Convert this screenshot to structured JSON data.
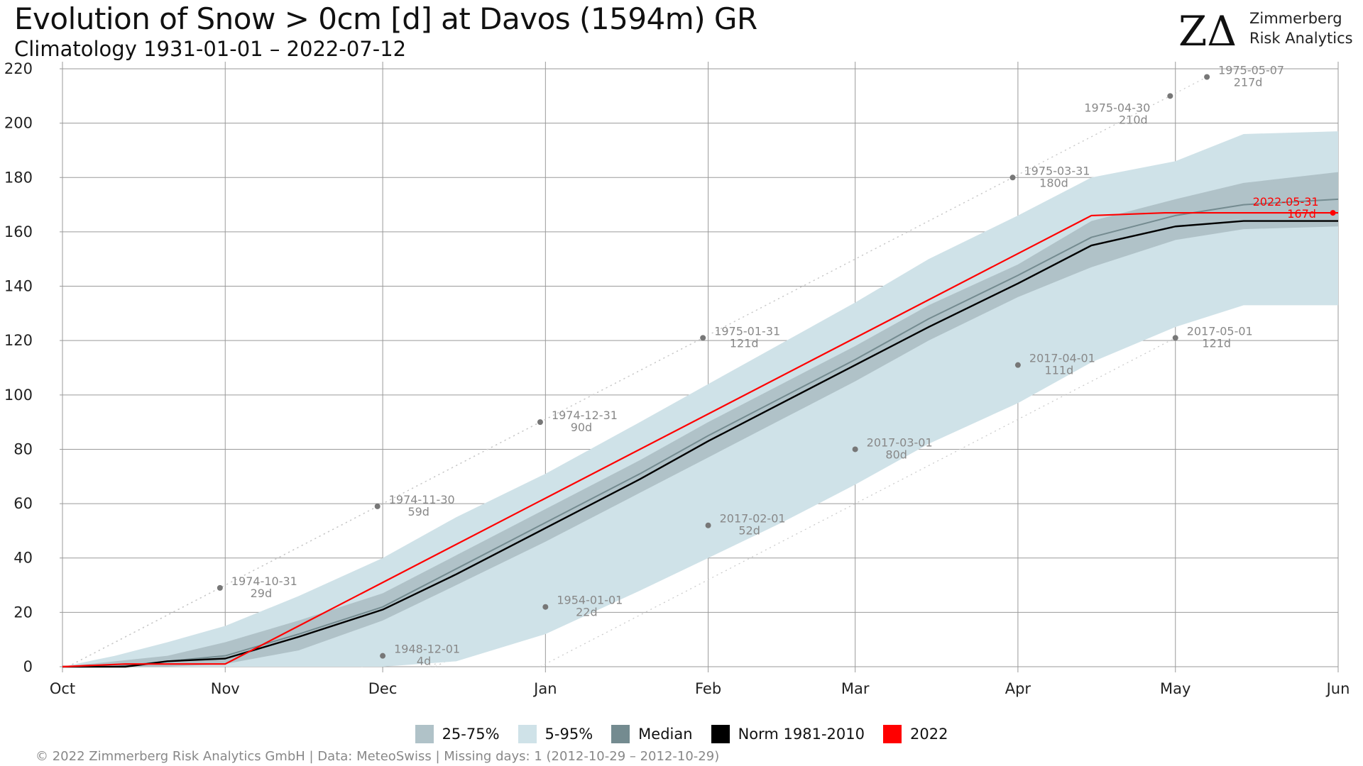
{
  "header": {
    "title": "Evolution of Snow > 0cm [d] at Davos (1594m) GR",
    "subtitle": "Climatology 1931-01-01 – 2022-07-12"
  },
  "logo": {
    "mark": "ZΔ",
    "line1": "Zimmerberg",
    "line2": "Risk Analytics"
  },
  "footer": {
    "text": "©  2022 Zimmerberg Risk Analytics GmbH | Data: MeteoSwiss | Missing days: 1 (2012-10-29 – 2012-10-29)"
  },
  "colors": {
    "band_25_75": "#b0c2c8",
    "band_5_95": "#cfe2e8",
    "median": "#748b90",
    "norm": "#000000",
    "current": "#ff0000",
    "annotation": "#888888"
  },
  "legend": [
    {
      "label": "25-75%",
      "color": "#b0c2c8"
    },
    {
      "label": "5-95%",
      "color": "#cfe2e8"
    },
    {
      "label": "Median",
      "color": "#748b90"
    },
    {
      "label": "Norm 1981-2010",
      "color": "#000000"
    },
    {
      "label": "2022",
      "color": "#ff0000"
    }
  ],
  "chart_data": {
    "type": "line",
    "title": "Evolution of Snow > 0cm [d] at Davos (1594m) GR",
    "subtitle": "Climatology 1931-01-01 – 2022-07-12",
    "xlabel": "",
    "ylabel": "",
    "x_unit": "days since Oct 1",
    "xlim": [
      0,
      243
    ],
    "ylim": [
      0,
      220
    ],
    "yticks": [
      0,
      20,
      40,
      60,
      80,
      100,
      120,
      140,
      160,
      180,
      200,
      220
    ],
    "xticks": [
      {
        "label": "Oct",
        "x": 0
      },
      {
        "label": "Nov",
        "x": 31
      },
      {
        "label": "Dec",
        "x": 61
      },
      {
        "label": "Jan",
        "x": 92
      },
      {
        "label": "Feb",
        "x": 123
      },
      {
        "label": "Mar",
        "x": 151
      },
      {
        "label": "Apr",
        "x": 182
      },
      {
        "label": "May",
        "x": 212
      },
      {
        "label": "Jun",
        "x": 243
      }
    ],
    "grid": true,
    "legend_position": "bottom",
    "bands": {
      "x": [
        0,
        10,
        20,
        31,
        45,
        61,
        75,
        92,
        110,
        123,
        137,
        151,
        165,
        182,
        196,
        212,
        225,
        243
      ],
      "p5": [
        0,
        0,
        0,
        0,
        0,
        0,
        2,
        12,
        28,
        40,
        53,
        67,
        82,
        97,
        112,
        125,
        133,
        133
      ],
      "p25": [
        0,
        0,
        0,
        1,
        6,
        17,
        30,
        46,
        64,
        77,
        91,
        105,
        120,
        136,
        147,
        157,
        161,
        162
      ],
      "p75": [
        0,
        2,
        4,
        9,
        17,
        27,
        41,
        58,
        76,
        90,
        104,
        118,
        133,
        148,
        164,
        172,
        178,
        182
      ],
      "p95": [
        0,
        4,
        9,
        15,
        26,
        40,
        55,
        71,
        90,
        104,
        119,
        134,
        150,
        166,
        180,
        186,
        196,
        197
      ]
    },
    "series": [
      {
        "name": "Median",
        "x": [
          0,
          10,
          20,
          31,
          45,
          61,
          75,
          92,
          110,
          123,
          137,
          151,
          165,
          182,
          196,
          212,
          225,
          243
        ],
        "y": [
          0,
          0,
          2,
          4,
          12,
          22,
          36,
          53,
          71,
          85,
          99,
          113,
          128,
          144,
          158,
          166,
          170,
          172
        ]
      },
      {
        "name": "Norm 1981-2010",
        "x": [
          0,
          12,
          20,
          31,
          45,
          61,
          75,
          92,
          110,
          123,
          137,
          151,
          165,
          182,
          196,
          212,
          225,
          243
        ],
        "y": [
          0,
          0,
          2,
          3,
          11,
          21,
          34,
          51,
          69,
          83,
          97,
          111,
          125,
          141,
          155,
          162,
          164,
          164
        ]
      },
      {
        "name": "2022",
        "x": [
          0,
          12,
          31,
          196,
          210,
          243
        ],
        "y": [
          0,
          1,
          1,
          166,
          167,
          167
        ]
      }
    ],
    "annotations": [
      {
        "x": 30,
        "y": 29,
        "date": "1974-10-31",
        "value": "29d"
      },
      {
        "x": 60,
        "y": 59,
        "date": "1974-11-30",
        "value": "59d"
      },
      {
        "x": 91,
        "y": 90,
        "date": "1974-12-31",
        "value": "90d"
      },
      {
        "x": 122,
        "y": 121,
        "date": "1975-01-31",
        "value": "121d"
      },
      {
        "x": 181,
        "y": 180,
        "date": "1975-03-31",
        "value": "180d"
      },
      {
        "x": 211,
        "y": 210,
        "date": "1975-04-30",
        "value": "210d"
      },
      {
        "x": 218,
        "y": 217,
        "date": "1975-05-07",
        "value": "217d"
      },
      {
        "x": 61,
        "y": 4,
        "date": "1948-12-01",
        "value": "4d"
      },
      {
        "x": 92,
        "y": 22,
        "date": "1954-01-01",
        "value": "22d"
      },
      {
        "x": 123,
        "y": 52,
        "date": "2017-02-01",
        "value": "52d"
      },
      {
        "x": 151,
        "y": 80,
        "date": "2017-03-01",
        "value": "80d"
      },
      {
        "x": 182,
        "y": 111,
        "date": "2017-04-01",
        "value": "111d"
      },
      {
        "x": 212,
        "y": 121,
        "date": "2017-05-01",
        "value": "121d"
      },
      {
        "x": 242,
        "y": 167,
        "date": "2022-05-31",
        "value": "167d",
        "current": true
      }
    ]
  }
}
